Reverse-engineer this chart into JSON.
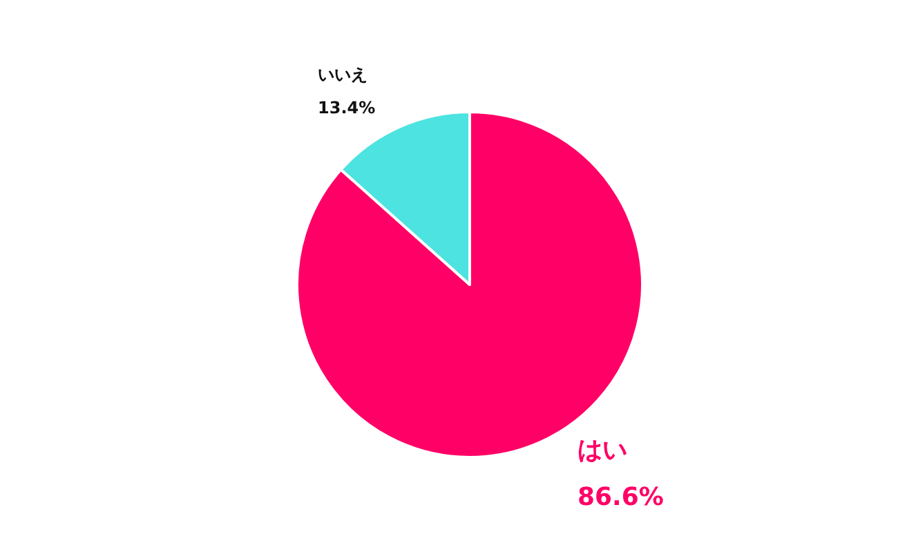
{
  "chart_data": {
    "type": "pie",
    "categories": [
      "はい",
      "いいえ"
    ],
    "values": [
      86.6,
      13.4
    ],
    "colors": [
      "#ff0066",
      "#4de3e0"
    ],
    "value_labels": [
      "86.6%",
      "13.4%"
    ],
    "legend": false
  }
}
